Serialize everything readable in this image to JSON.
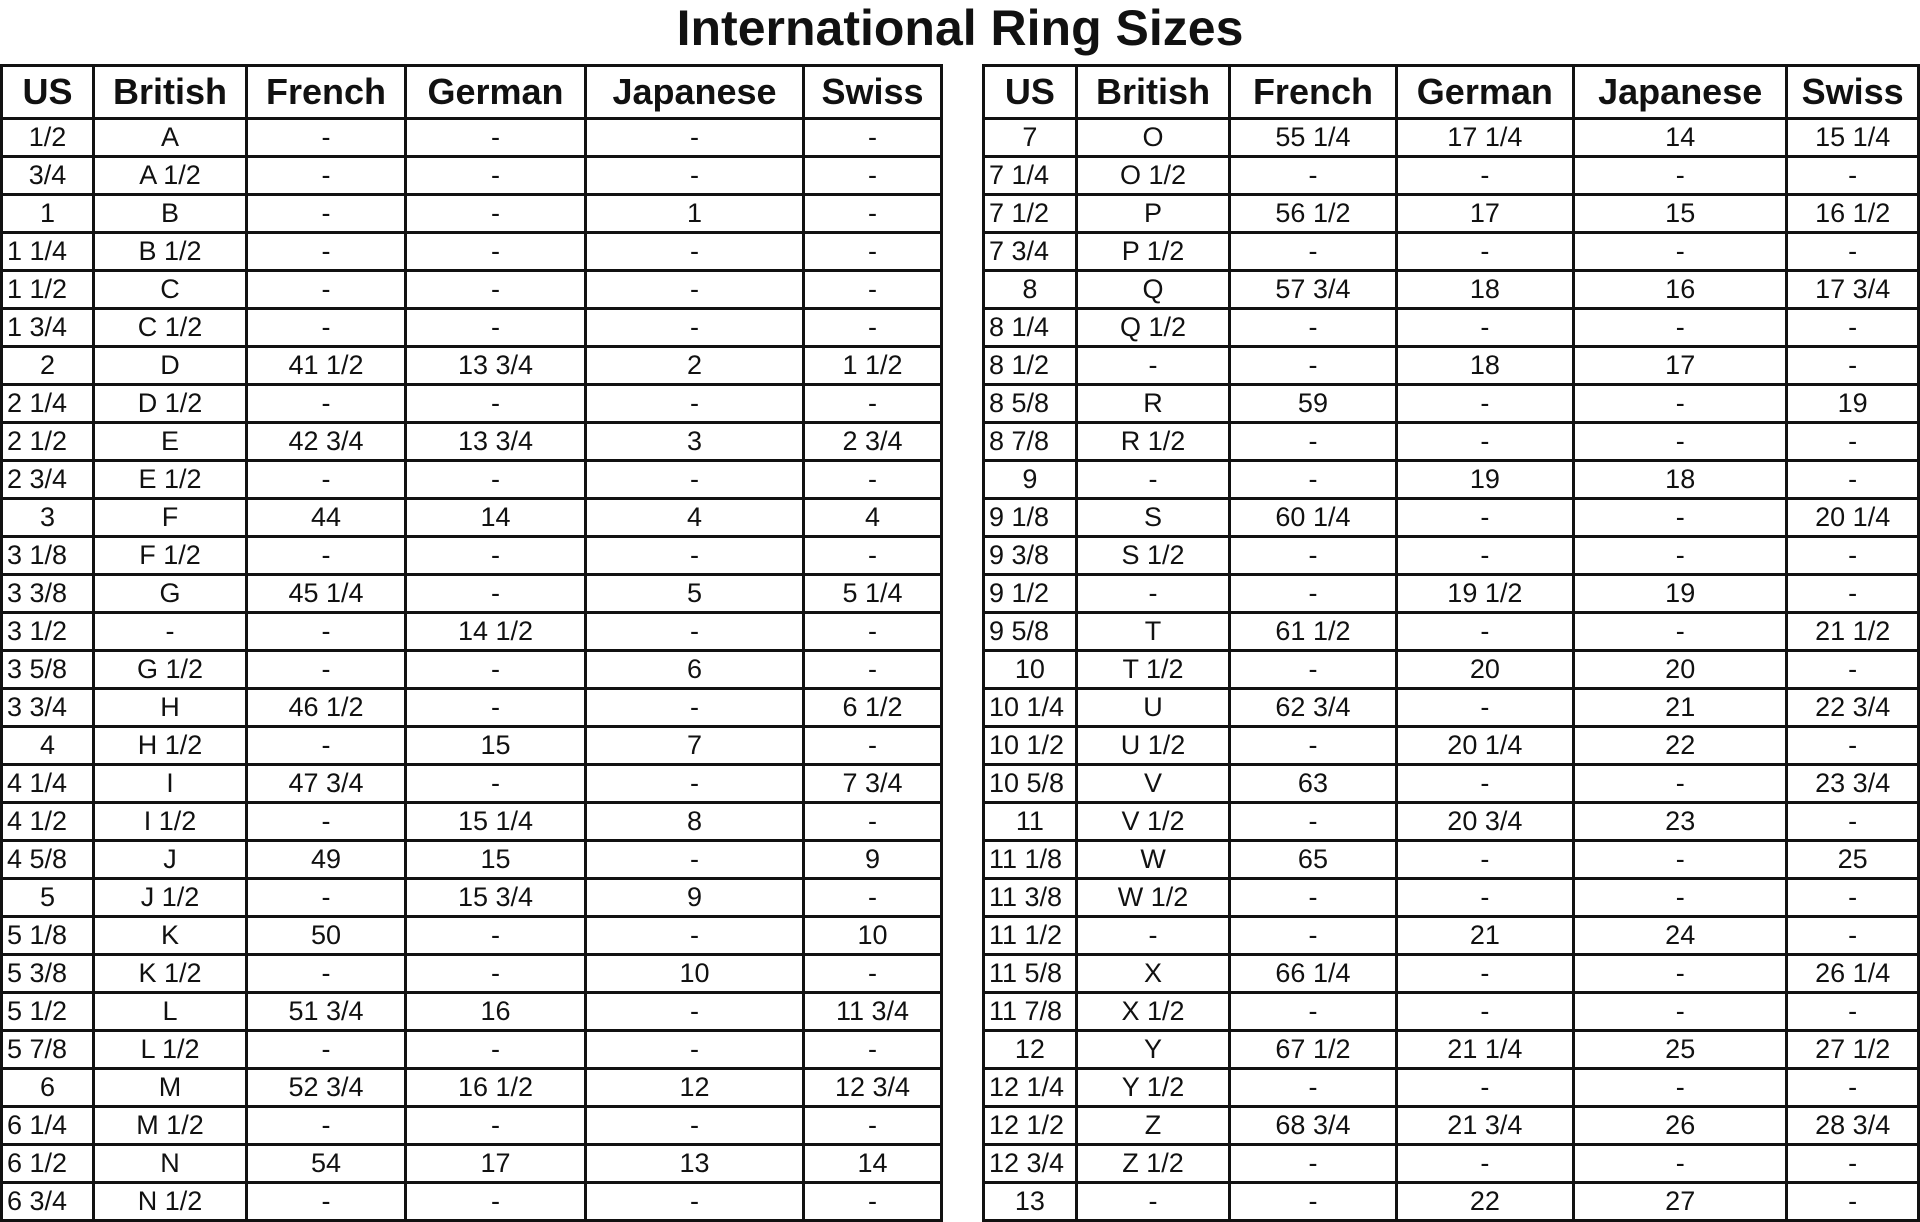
{
  "title": "International Ring Sizes",
  "columns": [
    "US",
    "British",
    "French",
    "German",
    "Japanese",
    "Swiss"
  ],
  "left_rows": [
    [
      "1/2",
      "A",
      "-",
      "-",
      "-",
      "-"
    ],
    [
      "3/4",
      "A 1/2",
      "-",
      "-",
      "-",
      "-"
    ],
    [
      "1",
      "B",
      "-",
      "-",
      "1",
      "-"
    ],
    [
      "1 1/4",
      "B 1/2",
      "-",
      "-",
      "-",
      "-"
    ],
    [
      "1 1/2",
      "C",
      "-",
      "-",
      "-",
      "-"
    ],
    [
      "1 3/4",
      "C 1/2",
      "-",
      "-",
      "-",
      "-"
    ],
    [
      "2",
      "D",
      "41 1/2",
      "13 3/4",
      "2",
      "1 1/2"
    ],
    [
      "2 1/4",
      "D 1/2",
      "-",
      "-",
      "-",
      "-"
    ],
    [
      "2 1/2",
      "E",
      "42 3/4",
      "13 3/4",
      "3",
      "2 3/4"
    ],
    [
      "2 3/4",
      "E 1/2",
      "-",
      "-",
      "-",
      "-"
    ],
    [
      "3",
      "F",
      "44",
      "14",
      "4",
      "4"
    ],
    [
      "3 1/8",
      "F 1/2",
      "-",
      "-",
      "-",
      "-"
    ],
    [
      "3 3/8",
      "G",
      "45 1/4",
      "-",
      "5",
      "5 1/4"
    ],
    [
      "3 1/2",
      "-",
      "-",
      "14 1/2",
      "-",
      "-"
    ],
    [
      "3 5/8",
      "G 1/2",
      "-",
      "-",
      "6",
      "-"
    ],
    [
      "3 3/4",
      "H",
      "46 1/2",
      "-",
      "-",
      "6 1/2"
    ],
    [
      "4",
      "H 1/2",
      "-",
      "15",
      "7",
      "-"
    ],
    [
      "4 1/4",
      "I",
      "47 3/4",
      "-",
      "-",
      "7 3/4"
    ],
    [
      "4 1/2",
      "I 1/2",
      "-",
      "15 1/4",
      "8",
      "-"
    ],
    [
      "4 5/8",
      "J",
      "49",
      "15",
      "-",
      "9"
    ],
    [
      "5",
      "J 1/2",
      "-",
      "15 3/4",
      "9",
      "-"
    ],
    [
      "5 1/8",
      "K",
      "50",
      "-",
      "-",
      "10"
    ],
    [
      "5 3/8",
      "K 1/2",
      "-",
      "-",
      "10",
      "-"
    ],
    [
      "5 1/2",
      "L",
      "51 3/4",
      "16",
      "-",
      "11 3/4"
    ],
    [
      "5 7/8",
      "L 1/2",
      "-",
      "-",
      "-",
      "-"
    ],
    [
      "6",
      "M",
      "52 3/4",
      "16 1/2",
      "12",
      "12 3/4"
    ],
    [
      "6 1/4",
      "M 1/2",
      "-",
      "-",
      "-",
      "-"
    ],
    [
      "6 1/2",
      "N",
      "54",
      "17",
      "13",
      "14"
    ],
    [
      "6 3/4",
      "N 1/2",
      "-",
      "-",
      "-",
      "-"
    ]
  ],
  "right_rows": [
    [
      "7",
      "O",
      "55 1/4",
      "17 1/4",
      "14",
      "15 1/4"
    ],
    [
      "7 1/4",
      "O 1/2",
      "-",
      "-",
      "-",
      "-"
    ],
    [
      "7 1/2",
      "P",
      "56 1/2",
      "17",
      "15",
      "16 1/2"
    ],
    [
      "7 3/4",
      "P 1/2",
      "-",
      "-",
      "-",
      "-"
    ],
    [
      "8",
      "Q",
      "57 3/4",
      "18",
      "16",
      "17 3/4"
    ],
    [
      "8 1/4",
      "Q 1/2",
      "-",
      "-",
      "-",
      "-"
    ],
    [
      "8 1/2",
      "-",
      "-",
      "18",
      "17",
      "-"
    ],
    [
      "8 5/8",
      "R",
      "59",
      "-",
      "-",
      "19"
    ],
    [
      "8 7/8",
      "R 1/2",
      "-",
      "-",
      "-",
      "-"
    ],
    [
      "9",
      "-",
      "-",
      "19",
      "18",
      "-"
    ],
    [
      "9 1/8",
      "S",
      "60 1/4",
      "-",
      "-",
      "20 1/4"
    ],
    [
      "9 3/8",
      "S 1/2",
      "-",
      "-",
      "-",
      "-"
    ],
    [
      "9 1/2",
      "-",
      "-",
      "19 1/2",
      "19",
      "-"
    ],
    [
      "9 5/8",
      "T",
      "61 1/2",
      "-",
      "-",
      "21 1/2"
    ],
    [
      "10",
      "T 1/2",
      "-",
      "20",
      "20",
      "-"
    ],
    [
      "10 1/4",
      "U",
      "62 3/4",
      "-",
      "21",
      "22 3/4"
    ],
    [
      "10 1/2",
      "U 1/2",
      "-",
      "20 1/4",
      "22",
      "-"
    ],
    [
      "10 5/8",
      "V",
      "63",
      "-",
      "-",
      "23 3/4"
    ],
    [
      "11",
      "V 1/2",
      "-",
      "20 3/4",
      "23",
      "-"
    ],
    [
      "11 1/8",
      "W",
      "65",
      "-",
      "-",
      "25"
    ],
    [
      "11 3/8",
      "W 1/2",
      "-",
      "-",
      "-",
      "-"
    ],
    [
      "11 1/2",
      "-",
      "-",
      "21",
      "24",
      "-"
    ],
    [
      "11 5/8",
      "X",
      "66 1/4",
      "-",
      "-",
      "26 1/4"
    ],
    [
      "11 7/8",
      "X 1/2",
      "-",
      "-",
      "-",
      "-"
    ],
    [
      "12",
      "Y",
      "67 1/2",
      "21 1/4",
      "25",
      "27 1/2"
    ],
    [
      "12 1/4",
      "Y 1/2",
      "-",
      "-",
      "-",
      "-"
    ],
    [
      "12 1/2",
      "Z",
      "68 3/4",
      "21 3/4",
      "26",
      "28 3/4"
    ],
    [
      "12 3/4",
      "Z 1/2",
      "-",
      "-",
      "-",
      "-"
    ],
    [
      "13",
      "-",
      "-",
      "22",
      "27",
      "-"
    ]
  ]
}
